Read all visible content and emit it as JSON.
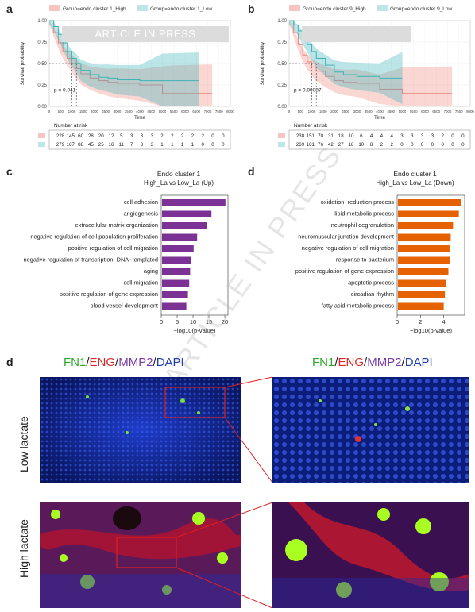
{
  "watermark": "ARTICLE IN PRESS",
  "panels": {
    "a": "a",
    "b": "b",
    "c": "c",
    "d1": "d",
    "d2": "d"
  },
  "km": [
    {
      "legend": [
        "Group=endo cluster 1_High",
        "Group=endo cluster 1_Low"
      ],
      "pvalue": "p = 0.041",
      "risk_rows": [
        [
          "228",
          "145",
          "60",
          "28",
          "20",
          "12",
          "5",
          "3",
          "3",
          "3",
          "2",
          "2",
          "2",
          "2",
          "2",
          "0",
          "0"
        ],
        [
          "279",
          "187",
          "88",
          "45",
          "25",
          "16",
          "11",
          "7",
          "3",
          "3",
          "1",
          "1",
          "1",
          "1",
          "0",
          "0",
          "0"
        ]
      ]
    },
    {
      "legend": [
        "Group=endo cluster 9_High",
        "Group=endo cluster 9_Low"
      ],
      "pvalue": "p = 0.00087",
      "risk_rows": [
        [
          "238",
          "151",
          "70",
          "31",
          "18",
          "10",
          "6",
          "4",
          "4",
          "4",
          "3",
          "3",
          "3",
          "3",
          "2",
          "0",
          "0"
        ],
        [
          "269",
          "181",
          "76",
          "42",
          "27",
          "18",
          "10",
          "8",
          "2",
          "2",
          "0",
          "0",
          "0",
          "0",
          "0",
          "0",
          "0"
        ]
      ]
    }
  ],
  "km_common": {
    "ylabel": "Survival probability",
    "xlabel": "Time",
    "yticks": [
      "1.00",
      "0.75",
      "0.50",
      "0.25",
      "0.00"
    ],
    "xticks": [
      "0",
      "500",
      "1000",
      "1500",
      "2000",
      "2500",
      "3000",
      "3500",
      "4000",
      "4500",
      "5000",
      "5500",
      "6000",
      "6500",
      "7000",
      "7500",
      "8000"
    ],
    "risk_title": "Number at risk"
  },
  "bar_panels": [
    {
      "title": "Endo cluster 1",
      "subtitle": "High_La vs Low_La (Up)"
    },
    {
      "title": "Endo cluster 1",
      "subtitle": "High_La vs Low_La (Down)"
    }
  ],
  "bar_xlabel": "−log10(p-value)",
  "micro": {
    "stain_parts": [
      "FN1",
      "/",
      "ENG",
      "/",
      "MMP2",
      "/",
      "DAPI"
    ],
    "stain_colors": [
      "#2da82d",
      "#333333",
      "#d62a2a",
      "#333333",
      "#7a3aa8",
      "#333333",
      "#1f3fb0"
    ],
    "row_labels": [
      "Low lactate",
      "High lactate"
    ]
  },
  "chart_data": [
    {
      "type": "line",
      "title": "",
      "xlabel": "Time",
      "ylabel": "Survival probability",
      "xlim": [
        0,
        8000
      ],
      "ylim": [
        0,
        1
      ],
      "series": [
        {
          "name": "Group=endo cluster 1_High",
          "color": "#e8837c",
          "x": [
            0,
            200,
            400,
            600,
            800,
            1000,
            1200,
            1400,
            1800,
            2200,
            2600,
            3000,
            4000,
            5000,
            5500,
            7200
          ],
          "y": [
            1,
            0.86,
            0.74,
            0.64,
            0.56,
            0.5,
            0.44,
            0.38,
            0.33,
            0.3,
            0.28,
            0.27,
            0.25,
            0.15,
            0.15,
            0.15
          ]
        },
        {
          "name": "Group=endo cluster 1_Low",
          "color": "#3fb3b5",
          "x": [
            0,
            200,
            400,
            600,
            800,
            1000,
            1200,
            1400,
            1800,
            2200,
            2600,
            3000,
            4000,
            5000,
            6600
          ],
          "y": [
            1,
            0.93,
            0.84,
            0.74,
            0.64,
            0.56,
            0.5,
            0.42,
            0.37,
            0.34,
            0.33,
            0.31,
            0.3,
            0.3,
            0.3
          ]
        }
      ]
    },
    {
      "type": "line",
      "title": "",
      "xlabel": "Time",
      "ylabel": "Survival probability",
      "xlim": [
        0,
        8000
      ],
      "ylim": [
        0,
        1
      ],
      "series": [
        {
          "name": "Group=endo cluster 9_High",
          "color": "#e8837c",
          "x": [
            0,
            200,
            400,
            600,
            800,
            1000,
            1200,
            1600,
            2000,
            2400,
            3000,
            4000,
            5000,
            7200
          ],
          "y": [
            1,
            0.86,
            0.72,
            0.6,
            0.52,
            0.46,
            0.41,
            0.35,
            0.3,
            0.28,
            0.27,
            0.2,
            0.15,
            0.15
          ]
        },
        {
          "name": "Group=endo cluster 9_Low",
          "color": "#3fb3b5",
          "x": [
            0,
            200,
            400,
            600,
            800,
            1000,
            1200,
            1600,
            2000,
            2400,
            3000,
            4000,
            5000
          ],
          "y": [
            1,
            0.95,
            0.88,
            0.8,
            0.72,
            0.64,
            0.56,
            0.48,
            0.4,
            0.37,
            0.35,
            0.33,
            0.33
          ]
        }
      ]
    },
    {
      "type": "bar",
      "orientation": "horizontal",
      "title": "Endo cluster 1",
      "subtitle": "High_La vs Low_La (Up)",
      "xlabel": "−log10(p-value)",
      "xlim": [
        0,
        21
      ],
      "xticks": [
        "0",
        "5",
        "10",
        "15",
        "20"
      ],
      "color": "#7b3294",
      "categories": [
        "cell adhesion",
        "angiogenesis",
        "extracellular matrix organization",
        "negative regulation of cell population proliferation",
        "positive regulation of cell migration",
        "negative regulation of transcription, DNA−templated",
        "aging",
        "cell migration",
        "positive regulation of gene expression",
        "blood vessel development"
      ],
      "values": [
        20.2,
        15.8,
        14.5,
        11.3,
        10.2,
        9.3,
        9.1,
        8.8,
        8.4,
        7.9
      ]
    },
    {
      "type": "bar",
      "orientation": "horizontal",
      "title": "Endo cluster 1",
      "subtitle": "High_La vs Low_La (Down)",
      "xlabel": "−log10(p-value)",
      "xlim": [
        0,
        5.8
      ],
      "xticks": [
        "0",
        "2",
        "4"
      ],
      "color": "#e66101",
      "categories": [
        "oxidation−reduction process",
        "lipid metabolic process",
        "neutrophil degranulation",
        "neuromuscular junction development",
        "negative regulation of cell migration",
        "response to bacterium",
        "positive regulation of gene expression",
        "apoptotic process",
        "circadian rhythm",
        "fatty acid metabolic process"
      ],
      "values": [
        5.5,
        5.3,
        4.8,
        4.6,
        4.5,
        4.5,
        4.4,
        4.2,
        4.1,
        4.0
      ]
    }
  ]
}
